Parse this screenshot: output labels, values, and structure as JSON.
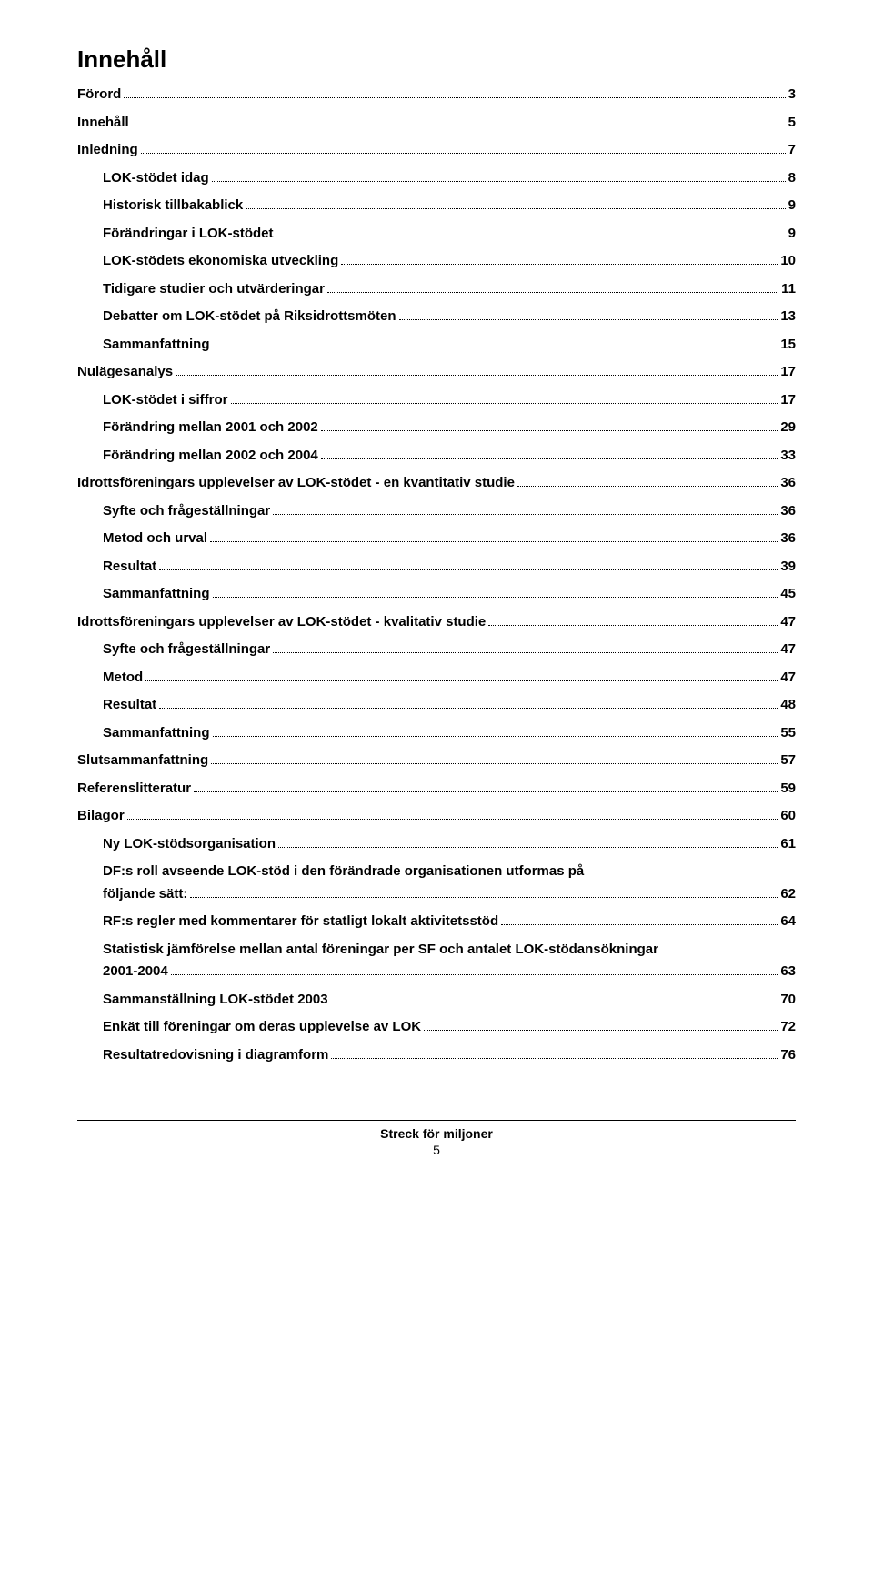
{
  "title": "Innehåll",
  "entries": [
    {
      "level": 0,
      "label": "Förord",
      "page": "3"
    },
    {
      "level": 0,
      "label": "Innehåll",
      "page": "5"
    },
    {
      "level": 0,
      "label": "Inledning",
      "page": "7"
    },
    {
      "level": 1,
      "label": "LOK-stödet idag",
      "page": "8"
    },
    {
      "level": 1,
      "label": "Historisk tillbakablick",
      "page": "9"
    },
    {
      "level": 1,
      "label": "Förändringar i LOK-stödet",
      "page": "9"
    },
    {
      "level": 1,
      "label": "LOK-stödets ekonomiska utveckling",
      "page": "10"
    },
    {
      "level": 1,
      "label": "Tidigare studier och utvärderingar",
      "page": "11"
    },
    {
      "level": 1,
      "label": "Debatter om LOK-stödet på Riksidrottsmöten",
      "page": "13"
    },
    {
      "level": 1,
      "label": "Sammanfattning",
      "page": "15"
    },
    {
      "level": 0,
      "label": "Nulägesanalys",
      "page": "17"
    },
    {
      "level": 1,
      "label": "LOK-stödet i siffror",
      "page": "17"
    },
    {
      "level": 1,
      "label": "Förändring mellan 2001 och 2002",
      "page": "29"
    },
    {
      "level": 1,
      "label": "Förändring mellan 2002 och 2004",
      "page": "33"
    },
    {
      "level": 0,
      "label": "Idrottsföreningars upplevelser av LOK-stödet - en kvantitativ studie",
      "page": "36"
    },
    {
      "level": 1,
      "label": "Syfte och frågeställningar",
      "page": "36"
    },
    {
      "level": 1,
      "label": "Metod och urval",
      "page": "36"
    },
    {
      "level": 1,
      "label": "Resultat",
      "page": "39"
    },
    {
      "level": 1,
      "label": "Sammanfattning",
      "page": "45"
    },
    {
      "level": 0,
      "label": "Idrottsföreningars upplevelser av LOK-stödet - kvalitativ studie",
      "page": "47"
    },
    {
      "level": 1,
      "label": "Syfte och frågeställningar",
      "page": "47"
    },
    {
      "level": 1,
      "label": "Metod",
      "page": "47"
    },
    {
      "level": 1,
      "label": "Resultat",
      "page": "48"
    },
    {
      "level": 1,
      "label": "Sammanfattning",
      "page": "55"
    },
    {
      "level": 0,
      "label": "Slutsammanfattning",
      "page": "57"
    },
    {
      "level": 0,
      "label": "Referenslitteratur",
      "page": "59"
    },
    {
      "level": 0,
      "label": "Bilagor",
      "page": "60"
    },
    {
      "level": 1,
      "label": "Ny LOK-stödsorganisation",
      "page": "61"
    },
    {
      "level": 1,
      "label_lines": [
        "DF:s roll avseende LOK-stöd i den förändrade organisationen utformas på",
        "följande sätt:"
      ],
      "page": "62"
    },
    {
      "level": 1,
      "label": "RF:s regler med kommentarer för statligt lokalt aktivitetsstöd",
      "page": "64"
    },
    {
      "level": 1,
      "label_lines": [
        "Statistisk jämförelse mellan antal föreningar per SF och antalet LOK-stödansökningar",
        " 2001-2004"
      ],
      "page": "63"
    },
    {
      "level": 1,
      "label": "Sammanställning LOK-stödet 2003",
      "page": "70"
    },
    {
      "level": 1,
      "label": "Enkät till föreningar om deras upplevelse av LOK",
      "page": "72"
    },
    {
      "level": 1,
      "label": "Resultatredovisning i diagramform",
      "page": "76"
    }
  ],
  "footer": {
    "title": "Streck för miljoner",
    "page_number": "5"
  }
}
